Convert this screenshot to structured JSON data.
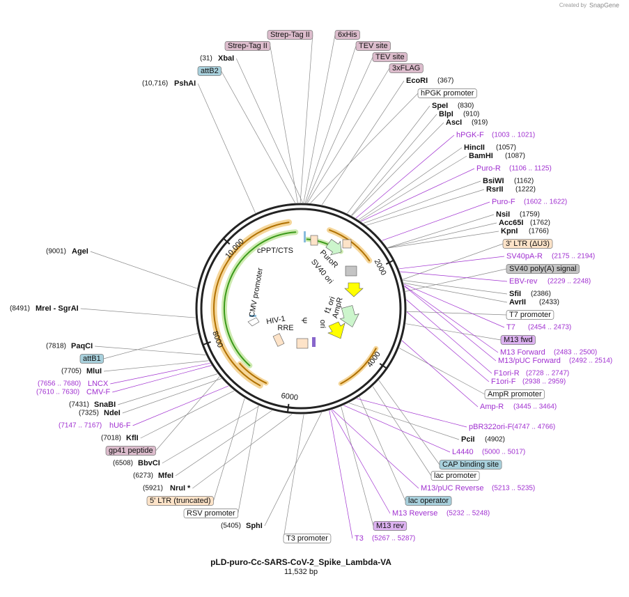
{
  "header": {
    "credit": "Created by",
    "brand": "SnapGene"
  },
  "map": {
    "name": "pLD-puro-Cc-SARS-CoV-2_Spike_Lambda-VA",
    "length": {
      "value": 11532,
      "label": "11,532 bp"
    },
    "ruler": [
      2000,
      4000,
      6000,
      8000,
      {
        "value": 10000,
        "label": "10,000"
      }
    ],
    "sites": [
      {
        "name": "XbaI",
        "position": "(31)"
      },
      {
        "name": "PshAI",
        "position": "(10,716)"
      },
      {
        "name": "EcoRI",
        "position": "(367)"
      },
      {
        "name": "SpeI",
        "position": "(830)"
      },
      {
        "name": "BlpI",
        "position": "(910)"
      },
      {
        "name": "AscI",
        "position": "(919)"
      },
      {
        "name": "HincII",
        "position": "(1057)"
      },
      {
        "name": "BamHI",
        "position": "(1087)"
      },
      {
        "name": "BsiWI",
        "position": "(1162)"
      },
      {
        "name": "RsrII",
        "position": "(1222)"
      },
      {
        "name": "NsiI",
        "position": "(1759)"
      },
      {
        "name": "Acc65I",
        "position": "(1762)"
      },
      {
        "name": "KpnI",
        "position": "(1766)"
      },
      {
        "name": "SfiI",
        "position": "(2386)"
      },
      {
        "name": "AvrII",
        "position": "(2433)"
      },
      {
        "name": "PciI",
        "position": "(4902)"
      },
      {
        "name": "SphI",
        "position": "(5405)"
      },
      {
        "name": "NruI *",
        "position": "(5921)"
      },
      {
        "name": "MfeI",
        "position": "(6273)"
      },
      {
        "name": "BbvCI",
        "position": "(6508)"
      },
      {
        "name": "KflI",
        "position": "(7018)"
      },
      {
        "name": "NdeI",
        "position": "(7325)"
      },
      {
        "name": "SnaBI",
        "position": "(7431)"
      },
      {
        "name": "MluI",
        "position": "(7705)"
      },
      {
        "name": "PaqCI",
        "position": "(7818)"
      },
      {
        "name": "MreI - SgrAI",
        "position": "(8491)"
      },
      {
        "name": "AgeI",
        "position": "(9001)"
      }
    ],
    "primers": {
      "color": "#a030d0",
      "items": [
        {
          "name": "hPGK-F",
          "position": "(1003 .. 1021)"
        },
        {
          "name": "Puro-R",
          "position": "(1106 .. 1125)"
        },
        {
          "name": "Puro-F",
          "position": "(1602 .. 1622)"
        },
        {
          "name": "SV40pA-R",
          "position": "(2175 .. 2194)"
        },
        {
          "name": "EBV-rev",
          "position": "(2229 .. 2248)"
        },
        {
          "name": "T7",
          "position": "(2454 .. 2473)"
        },
        {
          "name": "M13 Forward",
          "position": "(2483 .. 2500)"
        },
        {
          "name": "M13/pUC Forward",
          "position": "(2492 .. 2514)"
        },
        {
          "name": "F1ori-R",
          "position": "(2728 .. 2747)"
        },
        {
          "name": "F1ori-F",
          "position": "(2938 .. 2959)"
        },
        {
          "name": "Amp-R",
          "position": "(3445 .. 3464)"
        },
        {
          "name": "pBR322ori-F",
          "position": "(4747 .. 4766)"
        },
        {
          "name": "L4440",
          "position": "(5000 .. 5017)"
        },
        {
          "name": "M13/pUC Reverse",
          "position": "(5213 .. 5235)"
        },
        {
          "name": "M13 Reverse",
          "position": "(5232 .. 5248)"
        },
        {
          "name": "T3",
          "position": "(5267 .. 5287)"
        },
        {
          "name": "hU6-F",
          "position": "(7147 .. 7167)"
        },
        {
          "name": "CMV-F",
          "position": "(7610 .. 7630)"
        },
        {
          "name": "LNCX",
          "position": "(7656 .. 7680)"
        }
      ]
    },
    "features": [
      {
        "name": "Strep-Tag II",
        "color": "#dcbccc"
      },
      {
        "name": "6xHis",
        "color": "#dcbccc"
      },
      {
        "name": "Strep-Tag II",
        "color": "#dcbccc"
      },
      {
        "name": "TEV site",
        "color": "#dcbccc"
      },
      {
        "name": "TEV site",
        "color": "#dcbccc"
      },
      {
        "name": "3xFLAG",
        "color": "#dcbccc"
      },
      {
        "name": "attB2",
        "color": "#a8d0dc"
      },
      {
        "name": "hPGK promoter",
        "color": "#ffffff"
      },
      {
        "name": "3' LTR (ΔU3)",
        "color": "#fde3c8"
      },
      {
        "name": "SV40 poly(A) signal",
        "color": "#c4c4c4"
      },
      {
        "name": "T7 promoter",
        "color": "#ffffff"
      },
      {
        "name": "M13 fwd",
        "color": "#dcb2f0"
      },
      {
        "name": "AmpR promoter",
        "color": "#ffffff"
      },
      {
        "name": "CAP binding site",
        "color": "#a8d0dc"
      },
      {
        "name": "lac promoter",
        "color": "#ffffff"
      },
      {
        "name": "lac operator",
        "color": "#a8d0dc"
      },
      {
        "name": "M13 rev",
        "color": "#dcb2f0"
      },
      {
        "name": "T3 promoter",
        "color": "#ffffff"
      },
      {
        "name": "RSV promoter",
        "color": "#ffffff"
      },
      {
        "name": "5' LTR (truncated)",
        "color": "#fde3c8"
      },
      {
        "name": "gp41 peptide",
        "color": "#dcbccc"
      },
      {
        "name": "attB1",
        "color": "#a8d0dc"
      }
    ],
    "inner_labels": [
      "cPPT/CTS",
      "PuroR",
      "SV40 ori",
      "f1 ori",
      "AmpR",
      "ori",
      "Ψ",
      "HIV-1",
      "RRE",
      "CMV promoter"
    ]
  }
}
